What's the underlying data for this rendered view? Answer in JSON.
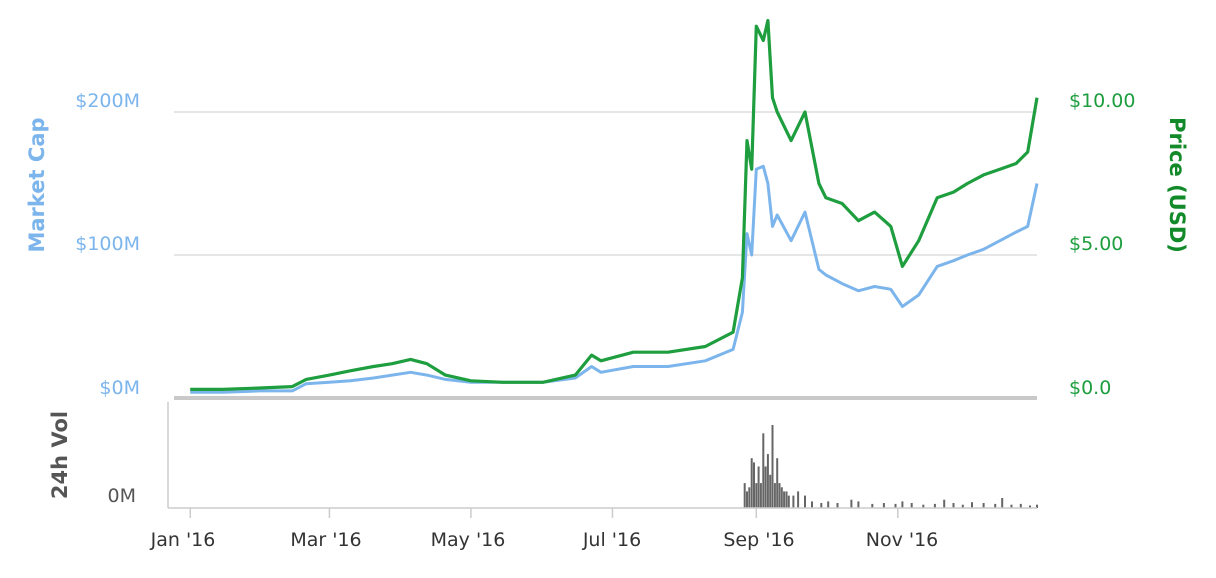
{
  "chart_data": [
    {
      "type": "line",
      "x_ticks": [
        "Jan '16",
        "Mar '16",
        "May '16",
        "Jul '16",
        "Sep '16",
        "Nov '16"
      ],
      "left_axis": {
        "label": "Market Cap",
        "ticks": [
          "$0M",
          "$100M",
          "$200M"
        ],
        "ylim": [
          0,
          200
        ]
      },
      "right_axis": {
        "label": "Price (USD)",
        "ticks": [
          "$0.0",
          "$5.00",
          "$10.00"
        ],
        "ylim": [
          0,
          10
        ]
      },
      "grid": true,
      "colors": {
        "market_cap": "#7cb5ec",
        "price": "#1e9e3e"
      },
      "series": [
        {
          "axis": "left",
          "values_unit": "$M",
          "points": [
            [
              "2016-01-01",
              4
            ],
            [
              "2016-01-15",
              4
            ],
            [
              "2016-01-31",
              5
            ],
            [
              "2016-02-14",
              5
            ],
            [
              "2016-02-20",
              10
            ],
            [
              "2016-03-01",
              11
            ],
            [
              "2016-03-10",
              12
            ],
            [
              "2016-03-20",
              14
            ],
            [
              "2016-03-28",
              16
            ],
            [
              "2016-04-05",
              18
            ],
            [
              "2016-04-12",
              16
            ],
            [
              "2016-04-20",
              13
            ],
            [
              "2016-05-01",
              11
            ],
            [
              "2016-05-15",
              11
            ],
            [
              "2016-06-01",
              11
            ],
            [
              "2016-06-15",
              14
            ],
            [
              "2016-06-22",
              22
            ],
            [
              "2016-06-26",
              18
            ],
            [
              "2016-07-10",
              22
            ],
            [
              "2016-07-25",
              22
            ],
            [
              "2016-08-10",
              26
            ],
            [
              "2016-08-22",
              34
            ],
            [
              "2016-08-26",
              60
            ],
            [
              "2016-08-28",
              115
            ],
            [
              "2016-08-30",
              100
            ],
            [
              "2016-09-01",
              160
            ],
            [
              "2016-09-04",
              162
            ],
            [
              "2016-09-06",
              150
            ],
            [
              "2016-09-08",
              120
            ],
            [
              "2016-09-10",
              128
            ],
            [
              "2016-09-16",
              110
            ],
            [
              "2016-09-22",
              130
            ],
            [
              "2016-09-28",
              90
            ],
            [
              "2016-10-01",
              86
            ],
            [
              "2016-10-08",
              80
            ],
            [
              "2016-10-15",
              75
            ],
            [
              "2016-10-22",
              78
            ],
            [
              "2016-10-29",
              76
            ],
            [
              "2016-11-03",
              64
            ],
            [
              "2016-11-10",
              72
            ],
            [
              "2016-11-18",
              92
            ],
            [
              "2016-11-25",
              96
            ],
            [
              "2016-12-01",
              100
            ],
            [
              "2016-12-08",
              104
            ],
            [
              "2016-12-15",
              110
            ],
            [
              "2016-12-22",
              116
            ],
            [
              "2016-12-27",
              120
            ],
            [
              "2016-12-31",
              150
            ]
          ]
        },
        {
          "axis": "right",
          "values_unit": "USD",
          "points": [
            [
              "2016-01-01",
              0.3
            ],
            [
              "2016-01-15",
              0.3
            ],
            [
              "2016-01-31",
              0.35
            ],
            [
              "2016-02-14",
              0.4
            ],
            [
              "2016-02-20",
              0.65
            ],
            [
              "2016-03-01",
              0.8
            ],
            [
              "2016-03-10",
              0.95
            ],
            [
              "2016-03-20",
              1.1
            ],
            [
              "2016-03-28",
              1.2
            ],
            [
              "2016-04-05",
              1.35
            ],
            [
              "2016-04-12",
              1.2
            ],
            [
              "2016-04-20",
              0.8
            ],
            [
              "2016-05-01",
              0.6
            ],
            [
              "2016-05-15",
              0.55
            ],
            [
              "2016-06-01",
              0.55
            ],
            [
              "2016-06-15",
              0.8
            ],
            [
              "2016-06-22",
              1.5
            ],
            [
              "2016-06-26",
              1.3
            ],
            [
              "2016-07-10",
              1.6
            ],
            [
              "2016-07-25",
              1.6
            ],
            [
              "2016-08-10",
              1.8
            ],
            [
              "2016-08-22",
              2.3
            ],
            [
              "2016-08-26",
              4.2
            ],
            [
              "2016-08-28",
              9.0
            ],
            [
              "2016-08-30",
              8.0
            ],
            [
              "2016-09-01",
              13.0
            ],
            [
              "2016-09-04",
              12.5
            ],
            [
              "2016-09-06",
              13.2
            ],
            [
              "2016-09-08",
              10.5
            ],
            [
              "2016-09-10",
              10.0
            ],
            [
              "2016-09-16",
              9.0
            ],
            [
              "2016-09-22",
              10.0
            ],
            [
              "2016-09-28",
              7.5
            ],
            [
              "2016-10-01",
              7.0
            ],
            [
              "2016-10-08",
              6.8
            ],
            [
              "2016-10-15",
              6.2
            ],
            [
              "2016-10-22",
              6.5
            ],
            [
              "2016-10-29",
              6.0
            ],
            [
              "2016-11-03",
              4.6
            ],
            [
              "2016-11-10",
              5.5
            ],
            [
              "2016-11-18",
              7.0
            ],
            [
              "2016-11-25",
              7.2
            ],
            [
              "2016-12-01",
              7.5
            ],
            [
              "2016-12-08",
              7.8
            ],
            [
              "2016-12-15",
              8.0
            ],
            [
              "2016-12-22",
              8.2
            ],
            [
              "2016-12-27",
              8.6
            ],
            [
              "2016-12-31",
              10.5
            ]
          ]
        }
      ]
    },
    {
      "type": "bar",
      "y_label": "24h Vol",
      "y_ticks": [
        "0M"
      ],
      "color": "#666666",
      "bars": [
        [
          "2016-08-27",
          0.3
        ],
        [
          "2016-08-28",
          0.2
        ],
        [
          "2016-08-29",
          0.25
        ],
        [
          "2016-08-30",
          0.6
        ],
        [
          "2016-08-31",
          0.55
        ],
        [
          "2016-09-01",
          0.3
        ],
        [
          "2016-09-02",
          0.5
        ],
        [
          "2016-09-03",
          0.3
        ],
        [
          "2016-09-04",
          0.9
        ],
        [
          "2016-09-05",
          0.5
        ],
        [
          "2016-09-06",
          0.65
        ],
        [
          "2016-09-07",
          0.4
        ],
        [
          "2016-09-08",
          1.0
        ],
        [
          "2016-09-09",
          0.3
        ],
        [
          "2016-09-10",
          0.6
        ],
        [
          "2016-09-11",
          0.3
        ],
        [
          "2016-09-12",
          0.25
        ],
        [
          "2016-09-13",
          0.2
        ],
        [
          "2016-09-14",
          0.2
        ],
        [
          "2016-09-15",
          0.15
        ],
        [
          "2016-09-17",
          0.15
        ],
        [
          "2016-09-19",
          0.2
        ],
        [
          "2016-09-22",
          0.15
        ],
        [
          "2016-09-25",
          0.08
        ],
        [
          "2016-09-29",
          0.06
        ],
        [
          "2016-10-02",
          0.08
        ],
        [
          "2016-10-06",
          0.06
        ],
        [
          "2016-10-12",
          0.1
        ],
        [
          "2016-10-15",
          0.08
        ],
        [
          "2016-10-21",
          0.05
        ],
        [
          "2016-10-26",
          0.06
        ],
        [
          "2016-10-31",
          0.05
        ],
        [
          "2016-11-03",
          0.08
        ],
        [
          "2016-11-07",
          0.06
        ],
        [
          "2016-11-12",
          0.04
        ],
        [
          "2016-11-17",
          0.05
        ],
        [
          "2016-11-21",
          0.1
        ],
        [
          "2016-11-25",
          0.06
        ],
        [
          "2016-11-29",
          0.04
        ],
        [
          "2016-12-03",
          0.07
        ],
        [
          "2016-12-08",
          0.06
        ],
        [
          "2016-12-13",
          0.05
        ],
        [
          "2016-12-16",
          0.12
        ],
        [
          "2016-12-20",
          0.04
        ],
        [
          "2016-12-24",
          0.05
        ],
        [
          "2016-12-28",
          0.03
        ],
        [
          "2016-12-31",
          0.04
        ]
      ]
    }
  ]
}
